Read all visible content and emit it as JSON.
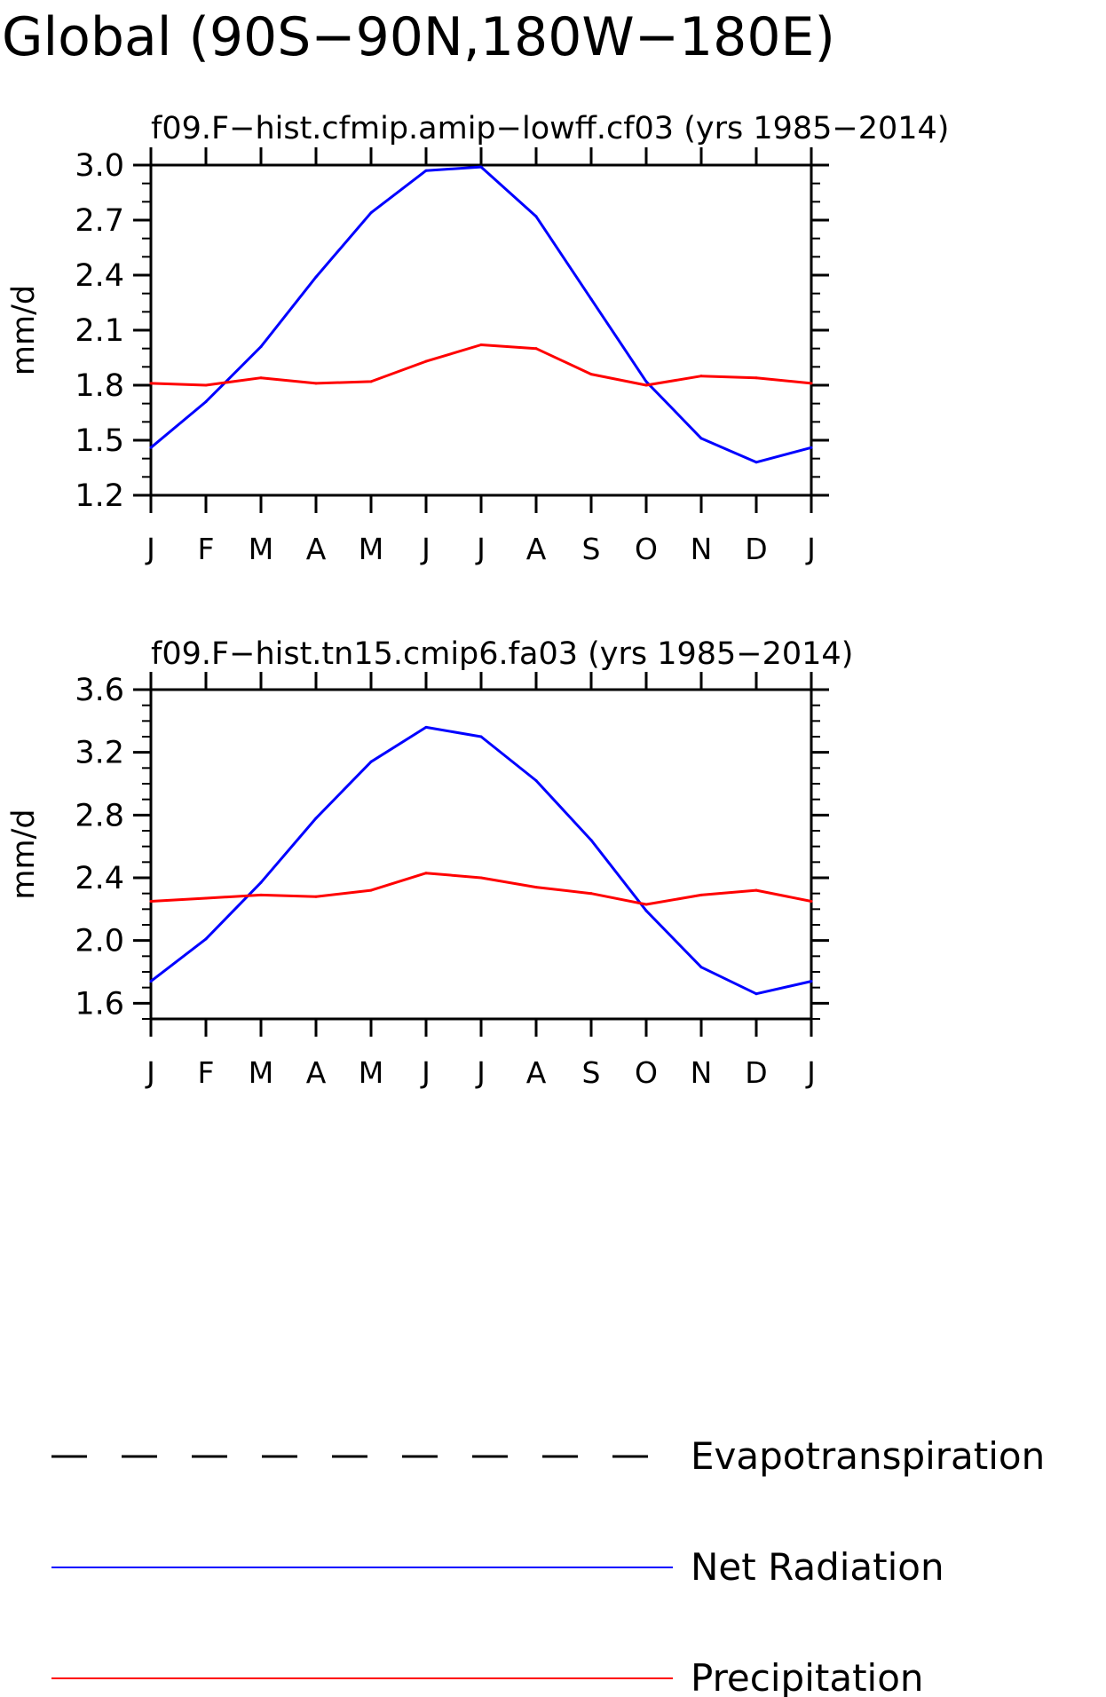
{
  "title": "Global (90S−90N,180W−180E)",
  "colors": {
    "net_radiation": "#0000ff",
    "precipitation": "#ff0000",
    "evapotranspiration": "#000000",
    "axes": "#000000"
  },
  "legend": {
    "position": "bottom",
    "items": [
      {
        "label": "Evapotranspiration",
        "style": "dashed",
        "color": "#000000"
      },
      {
        "label": "Net Radiation",
        "style": "solid",
        "color": "#0000ff"
      },
      {
        "label": "Precipitation",
        "style": "solid",
        "color": "#ff0000"
      }
    ]
  },
  "chart_data": [
    {
      "type": "line",
      "title": "f09.F−hist.cfmip.amip−lowff.cf03 (yrs 1985−2014)",
      "ylabel": "mm/d",
      "xlabel": "",
      "categories": [
        "J",
        "F",
        "M",
        "A",
        "M",
        "J",
        "J",
        "A",
        "S",
        "O",
        "N",
        "D",
        "J"
      ],
      "ylim": [
        1.2,
        3.0
      ],
      "yticks": [
        "1.2",
        "1.5",
        "1.8",
        "2.1",
        "2.4",
        "2.7",
        "3.0"
      ],
      "yminor_step": 0.1,
      "grid": false,
      "series": [
        {
          "name": "Net Radiation",
          "color": "#0000ff",
          "values": [
            1.46,
            1.71,
            2.01,
            2.39,
            2.74,
            2.97,
            2.99,
            2.72,
            2.27,
            1.82,
            1.51,
            1.38,
            1.46
          ]
        },
        {
          "name": "Precipitation",
          "color": "#ff0000",
          "values": [
            1.81,
            1.8,
            1.84,
            1.81,
            1.82,
            1.93,
            2.02,
            2.0,
            1.86,
            1.8,
            1.85,
            1.84,
            1.81
          ]
        }
      ]
    },
    {
      "type": "line",
      "title": "f09.F−hist.tn15.cmip6.fa03 (yrs 1985−2014)",
      "ylabel": "mm/d",
      "xlabel": "",
      "categories": [
        "J",
        "F",
        "M",
        "A",
        "M",
        "J",
        "J",
        "A",
        "S",
        "O",
        "N",
        "D",
        "J"
      ],
      "ylim": [
        1.5,
        3.6
      ],
      "yticks": [
        "1.6",
        "2.0",
        "2.4",
        "2.8",
        "3.2",
        "3.6"
      ],
      "yminor_step": 0.1,
      "grid": false,
      "series": [
        {
          "name": "Net Radiation",
          "color": "#0000ff",
          "values": [
            1.74,
            2.01,
            2.37,
            2.78,
            3.14,
            3.36,
            3.3,
            3.02,
            2.64,
            2.19,
            1.83,
            1.66,
            1.74
          ]
        },
        {
          "name": "Precipitation",
          "color": "#ff0000",
          "values": [
            2.25,
            2.27,
            2.29,
            2.28,
            2.32,
            2.43,
            2.4,
            2.34,
            2.3,
            2.23,
            2.29,
            2.32,
            2.25
          ]
        }
      ]
    }
  ]
}
